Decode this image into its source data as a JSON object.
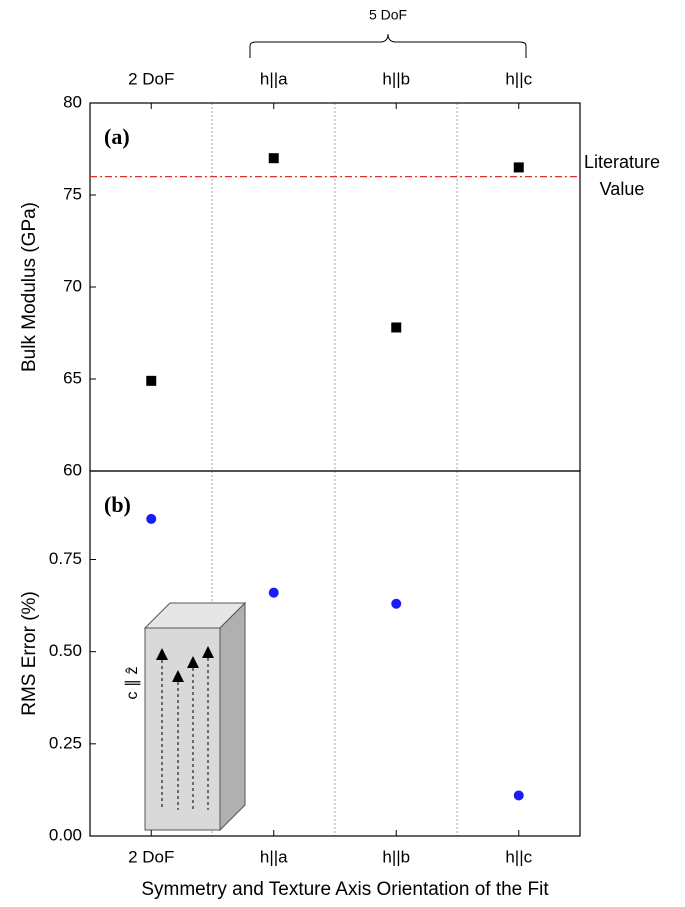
{
  "chart_data": [
    {
      "type": "scatter",
      "panel_label": "(a)",
      "y_label": "Bulk Modulus (GPa)",
      "categories": [
        "2 DoF",
        "h||a",
        "h||b",
        "h||c"
      ],
      "values": [
        64.9,
        77.0,
        67.8,
        76.5
      ],
      "color": "#000000",
      "marker": "square",
      "ylim": [
        60,
        80
      ],
      "yticks": [
        60,
        65,
        70,
        75,
        80
      ],
      "reference_line": {
        "value": 76,
        "color": "#e03030",
        "label": [
          "Literature",
          "Value"
        ]
      },
      "group_annotation": "5 DoF"
    },
    {
      "type": "scatter",
      "panel_label": "(b)",
      "y_label": "RMS Error (%)",
      "x_label": "Symmetry and Texture Axis Orientation of the Fit",
      "categories": [
        "2 DoF",
        "h||a",
        "h||b",
        "h||c"
      ],
      "values": [
        0.86,
        0.66,
        0.63,
        0.11
      ],
      "color": "#1a1aff",
      "marker": "circle",
      "ylim": [
        0,
        0.99
      ],
      "yticks": [
        {
          "value": 0,
          "label": "0.00"
        },
        {
          "value": 0.25,
          "label": "0.25"
        },
        {
          "value": 0.5,
          "label": "0.50"
        },
        {
          "value": 0.75,
          "label": "0.75"
        }
      ],
      "inset_label": "c ∥ ẑ"
    }
  ]
}
